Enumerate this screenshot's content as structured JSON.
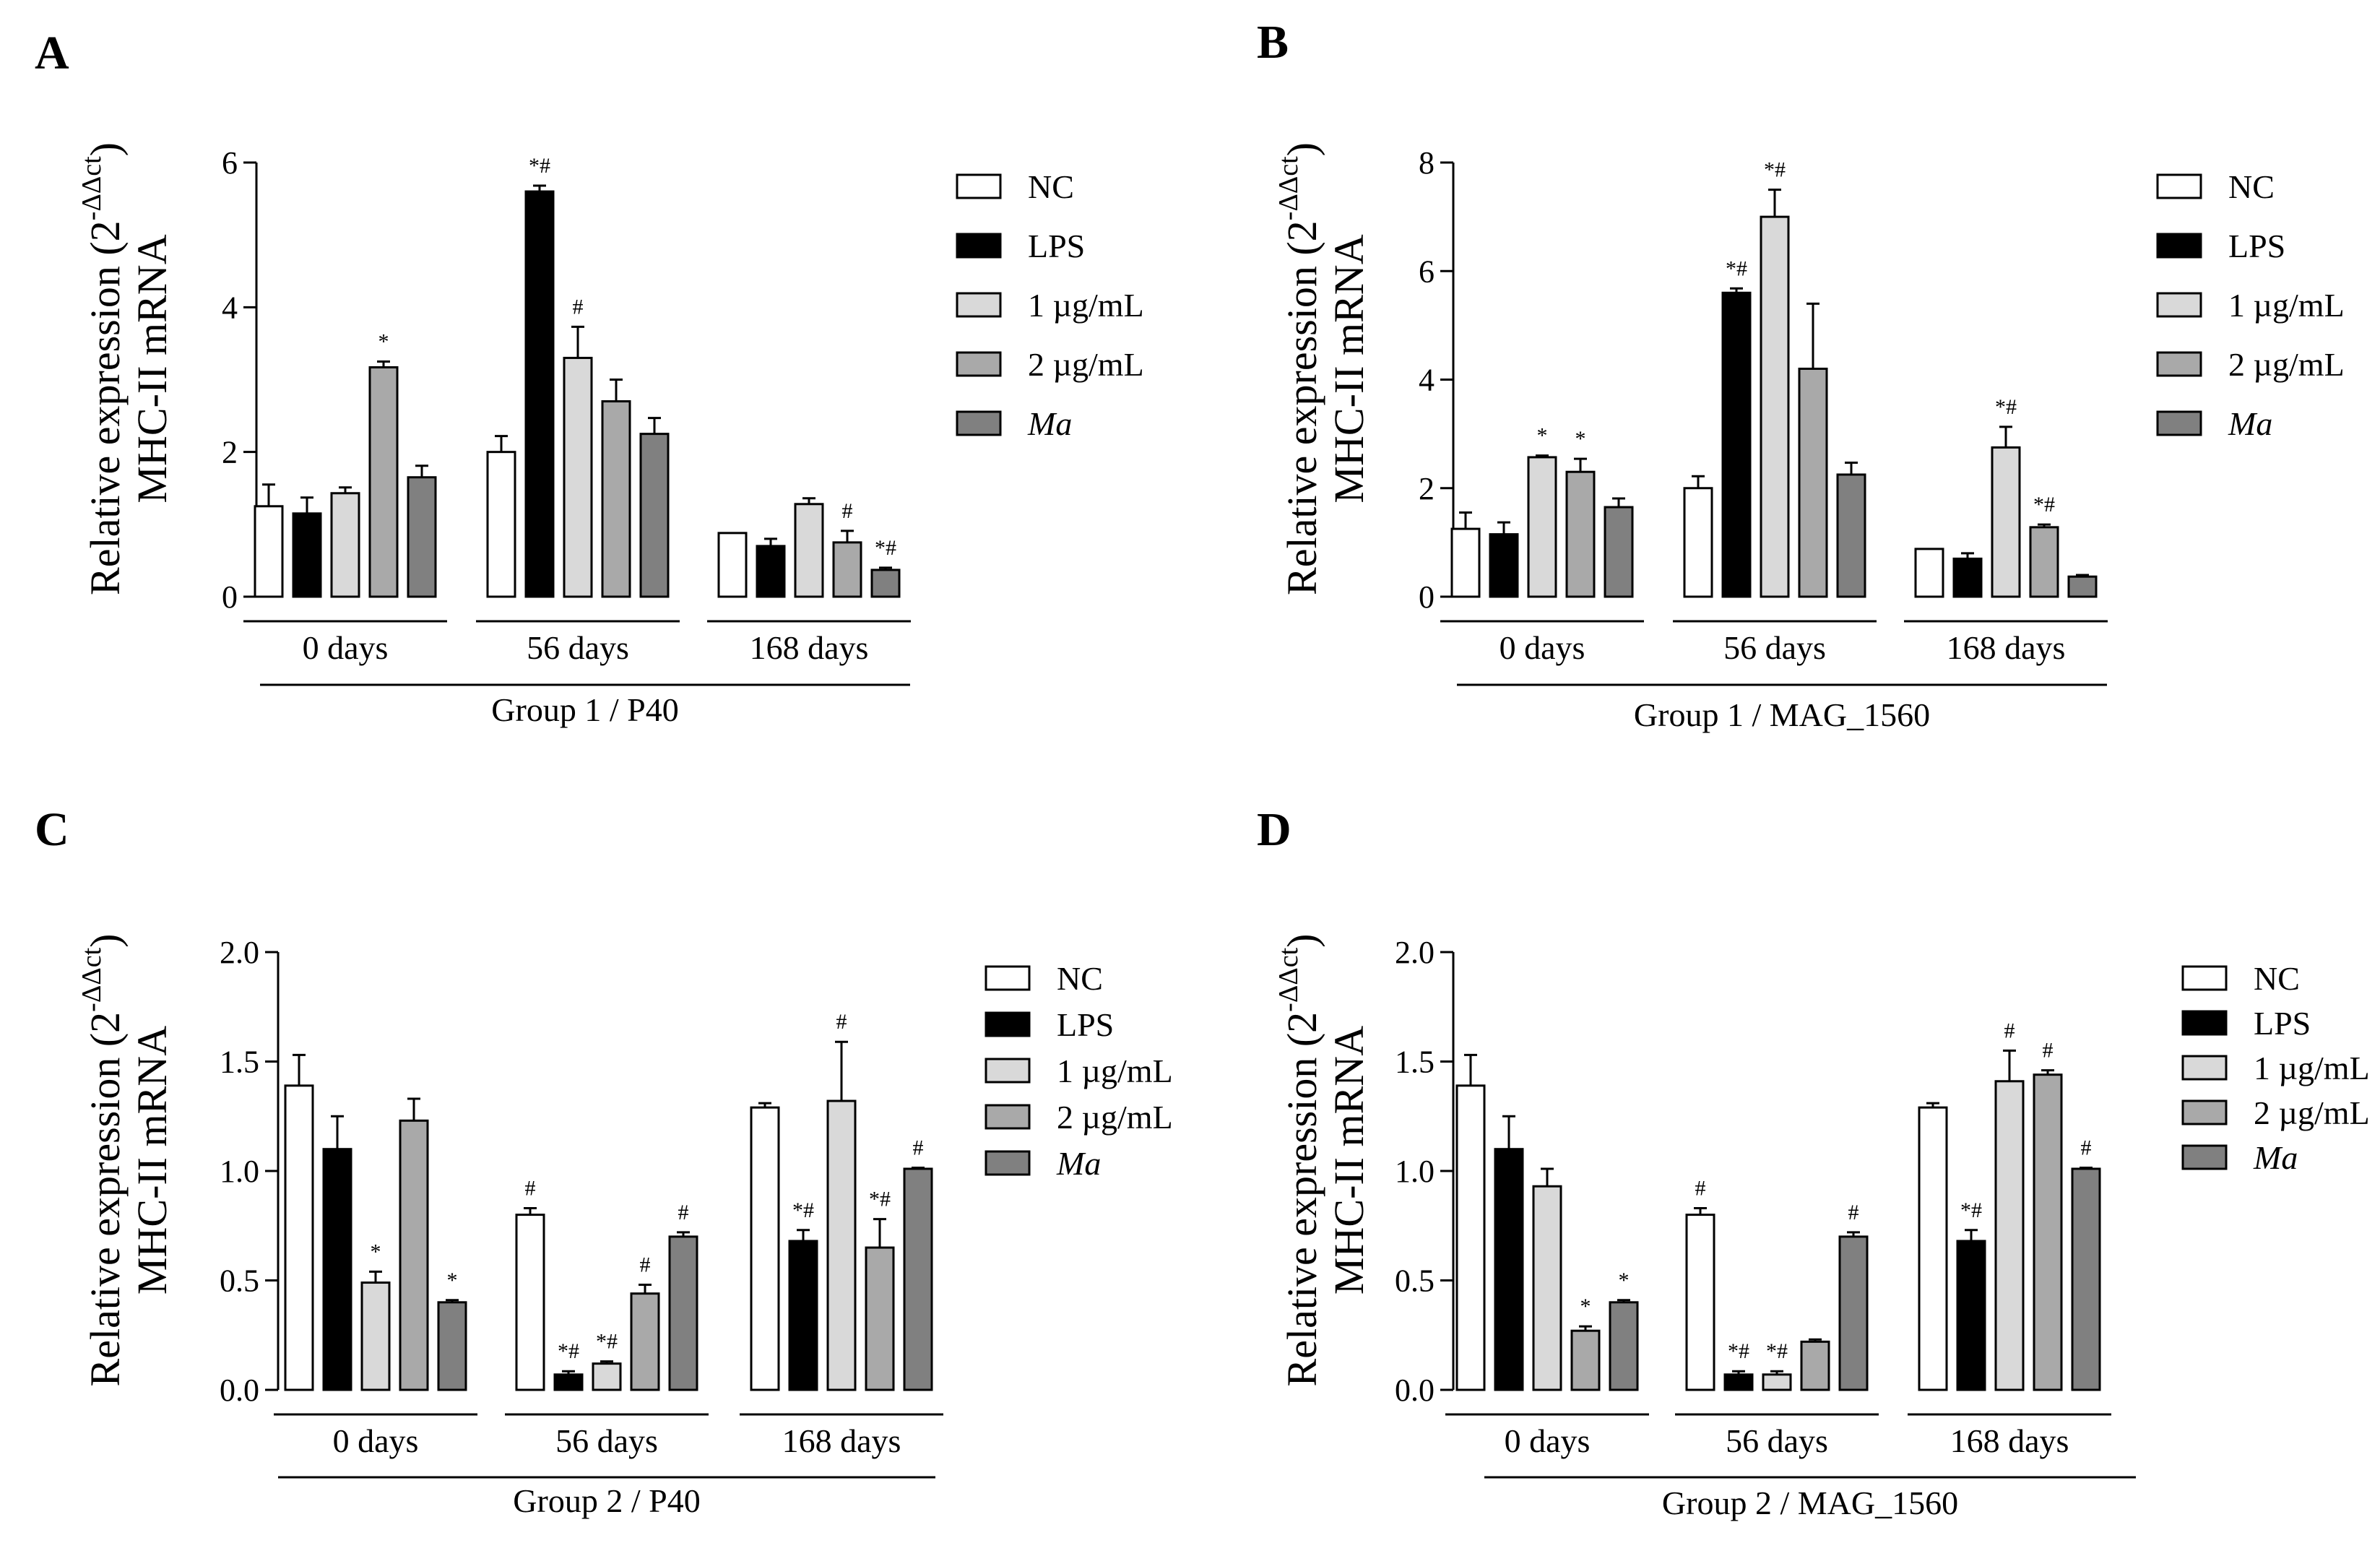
{
  "series_names": [
    "NC",
    "LPS",
    "1 µg/mL",
    "2 µg/mL",
    "Ma"
  ],
  "series_colors": [
    "#ffffff",
    "#000000",
    "#d9d9d9",
    "#a9a9a9",
    "#808080"
  ],
  "y_label_line1": "Relative expression (2",
  "y_label_sup": "-ΔΔct",
  "y_label_close": ")",
  "y_label_line2": "MHC-II mRNA",
  "chart_data": [
    {
      "panel": "A",
      "type": "bar",
      "group_label": "Group 1 / P40",
      "categories": [
        "0 days",
        "56 days",
        "168 days"
      ],
      "ylim": [
        0,
        6
      ],
      "yticks": [
        "0",
        "2",
        "4",
        "6"
      ],
      "ytick_values": [
        0,
        2,
        4,
        6
      ],
      "series": [
        {
          "name": "NC",
          "values": [
            1.25,
            2.0,
            0.88
          ],
          "errors": [
            0.3,
            0.22,
            0.0
          ],
          "sig": [
            "",
            "",
            ""
          ]
        },
        {
          "name": "LPS",
          "values": [
            1.15,
            5.6,
            0.7
          ],
          "errors": [
            0.22,
            0.08,
            0.1
          ],
          "sig": [
            "",
            "*#",
            ""
          ]
        },
        {
          "name": "1 µg/mL",
          "values": [
            1.43,
            3.3,
            1.28
          ],
          "errors": [
            0.08,
            0.43,
            0.08
          ],
          "sig": [
            "",
            "#",
            ""
          ]
        },
        {
          "name": "2 µg/mL",
          "values": [
            3.17,
            2.7,
            0.75
          ],
          "errors": [
            0.08,
            0.3,
            0.16
          ],
          "sig": [
            "*",
            "",
            "#"
          ]
        },
        {
          "name": "Ma",
          "values": [
            1.65,
            2.25,
            0.37
          ],
          "errors": [
            0.16,
            0.22,
            0.03
          ],
          "sig": [
            "",
            "",
            "*#"
          ]
        }
      ]
    },
    {
      "panel": "B",
      "type": "bar",
      "group_label": "Group 1 / MAG_1560",
      "categories": [
        "0 days",
        "56 days",
        "168 days"
      ],
      "ylim": [
        0,
        8
      ],
      "yticks": [
        "0",
        "2",
        "4",
        "6",
        "8"
      ],
      "ytick_values": [
        0,
        2,
        4,
        6,
        8
      ],
      "series": [
        {
          "name": "NC",
          "values": [
            1.25,
            2.0,
            0.88
          ],
          "errors": [
            0.3,
            0.22,
            0.0
          ],
          "sig": [
            "",
            "",
            ""
          ]
        },
        {
          "name": "LPS",
          "values": [
            1.15,
            5.6,
            0.7
          ],
          "errors": [
            0.22,
            0.08,
            0.1
          ],
          "sig": [
            "",
            "*#",
            ""
          ]
        },
        {
          "name": "1 µg/mL",
          "values": [
            2.57,
            7.0,
            2.75
          ],
          "errors": [
            0.03,
            0.5,
            0.38
          ],
          "sig": [
            "*",
            "*#",
            "*#"
          ]
        },
        {
          "name": "2 µg/mL",
          "values": [
            2.3,
            4.2,
            1.28
          ],
          "errors": [
            0.24,
            1.2,
            0.05
          ],
          "sig": [
            "*",
            "",
            "*#"
          ]
        },
        {
          "name": "Ma",
          "values": [
            1.65,
            2.25,
            0.37
          ],
          "errors": [
            0.16,
            0.22,
            0.03
          ],
          "sig": [
            "",
            "",
            ""
          ]
        }
      ]
    },
    {
      "panel": "C",
      "type": "bar",
      "group_label": "Group 2 / P40",
      "categories": [
        "0 days",
        "56 days",
        "168 days"
      ],
      "ylim": [
        0,
        2.0
      ],
      "yticks": [
        "0.0",
        "0.5",
        "1.0",
        "1.5",
        "2.0"
      ],
      "ytick_values": [
        0,
        0.5,
        1.0,
        1.5,
        2.0
      ],
      "series": [
        {
          "name": "NC",
          "values": [
            1.39,
            0.8,
            1.29
          ],
          "errors": [
            0.14,
            0.03,
            0.02
          ],
          "sig": [
            "",
            "#",
            ""
          ]
        },
        {
          "name": "LPS",
          "values": [
            1.1,
            0.07,
            0.68
          ],
          "errors": [
            0.15,
            0.015,
            0.05
          ],
          "sig": [
            "",
            "*#",
            "*#"
          ]
        },
        {
          "name": "1 µg/mL",
          "values": [
            0.49,
            0.12,
            1.32
          ],
          "errors": [
            0.05,
            0.01,
            0.27
          ],
          "sig": [
            "*",
            "*#",
            "#"
          ]
        },
        {
          "name": "2 µg/mL",
          "values": [
            1.23,
            0.44,
            0.65
          ],
          "errors": [
            0.1,
            0.04,
            0.13
          ],
          "sig": [
            "",
            "#",
            "*#"
          ]
        },
        {
          "name": "Ma",
          "values": [
            0.4,
            0.7,
            1.01
          ],
          "errors": [
            0.01,
            0.02,
            0.005
          ],
          "sig": [
            "*",
            "#",
            "#"
          ]
        }
      ]
    },
    {
      "panel": "D",
      "type": "bar",
      "group_label": "Group 2 / MAG_1560",
      "categories": [
        "0 days",
        "56 days",
        "168 days"
      ],
      "ylim": [
        0,
        2.0
      ],
      "yticks": [
        "0.0",
        "0.5",
        "1.0",
        "1.5",
        "2.0"
      ],
      "ytick_values": [
        0,
        0.5,
        1.0,
        1.5,
        2.0
      ],
      "series": [
        {
          "name": "NC",
          "values": [
            1.39,
            0.8,
            1.29
          ],
          "errors": [
            0.14,
            0.03,
            0.02
          ],
          "sig": [
            "",
            "#",
            ""
          ]
        },
        {
          "name": "LPS",
          "values": [
            1.1,
            0.07,
            0.68
          ],
          "errors": [
            0.15,
            0.015,
            0.05
          ],
          "sig": [
            "",
            "*#",
            "*#"
          ]
        },
        {
          "name": "1 µg/mL",
          "values": [
            0.93,
            0.07,
            1.41
          ],
          "errors": [
            0.08,
            0.015,
            0.14
          ],
          "sig": [
            "",
            "*#",
            "#"
          ]
        },
        {
          "name": "2 µg/mL",
          "values": [
            0.27,
            0.22,
            1.44
          ],
          "errors": [
            0.02,
            0.01,
            0.02
          ],
          "sig": [
            "*",
            "",
            "#"
          ]
        },
        {
          "name": "Ma",
          "values": [
            0.4,
            0.7,
            1.01
          ],
          "errors": [
            0.01,
            0.02,
            0.005
          ],
          "sig": [
            "*",
            "#",
            "#"
          ]
        }
      ]
    }
  ]
}
